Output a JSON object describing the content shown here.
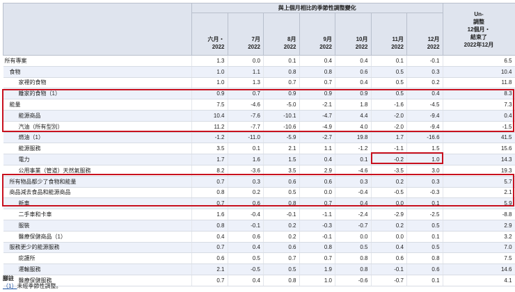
{
  "header": {
    "group_title": "與上個月相比的季節性調整變化",
    "columns": [
      [
        "六月・",
        "2022"
      ],
      [
        "7月",
        "2022"
      ],
      [
        "8月",
        "2022"
      ],
      [
        "9月",
        "2022"
      ],
      [
        "10月",
        "2022"
      ],
      [
        "11月",
        "2022"
      ],
      [
        "12月",
        "2022"
      ]
    ],
    "last_column": [
      "Un-",
      "調整",
      "12個月・",
      "結束了",
      "2022年12月"
    ]
  },
  "rows": [
    {
      "name": "所有專案",
      "indent": 0,
      "values": [
        "1.3",
        "0.0",
        "0.1",
        "0.4",
        "0.4",
        "0.1",
        "-0.1",
        "6.5"
      ]
    },
    {
      "name": "食物",
      "indent": 1,
      "values": [
        "1.0",
        "1.1",
        "0.8",
        "0.8",
        "0.6",
        "0.5",
        "0.3",
        "10.4"
      ]
    },
    {
      "name": "家裡的食物",
      "indent": 2,
      "values": [
        "1.0",
        "1.3",
        "0.7",
        "0.7",
        "0.4",
        "0.5",
        "0.2",
        "11.8"
      ]
    },
    {
      "name": "離家的食物（1）",
      "indent": 2,
      "values": [
        "0.9",
        "0.7",
        "0.9",
        "0.9",
        "0.9",
        "0.5",
        "0.4",
        "8.3"
      ]
    },
    {
      "name": "能量",
      "indent": 1,
      "values": [
        "7.5",
        "-4.6",
        "-5.0",
        "-2.1",
        "1.8",
        "-1.6",
        "-4.5",
        "7.3"
      ]
    },
    {
      "name": "能源商品",
      "indent": 2,
      "values": [
        "10.4",
        "-7.6",
        "-10.1",
        "-4.7",
        "4.4",
        "-2.0",
        "-9.4",
        "0.4"
      ]
    },
    {
      "name": "汽油（所有型別）",
      "indent": 2,
      "values": [
        "11.2",
        "-7.7",
        "-10.6",
        "-4.9",
        "4.0",
        "-2.0",
        "-9.4",
        "-1.5"
      ]
    },
    {
      "name": "燃油（1）",
      "indent": 2,
      "values": [
        "-1.2",
        "-11.0",
        "-5.9",
        "-2.7",
        "19.8",
        "1.7",
        "-16.6",
        "41.5"
      ]
    },
    {
      "name": "能源服務",
      "indent": 2,
      "values": [
        "3.5",
        "0.1",
        "2.1",
        "1.1",
        "-1.2",
        "-1.1",
        "1.5",
        "15.6"
      ]
    },
    {
      "name": "電力",
      "indent": 2,
      "values": [
        "1.7",
        "1.6",
        "1.5",
        "0.4",
        "0.1",
        "-0.2",
        "1.0",
        "14.3"
      ]
    },
    {
      "name": "公用事業（管道）天然氣服務",
      "indent": 2,
      "values": [
        "8.2",
        "-3.6",
        "3.5",
        "2.9",
        "-4.6",
        "-3.5",
        "3.0",
        "19.3"
      ]
    },
    {
      "name": "所有物品都少了食物和能量",
      "indent": 1,
      "values": [
        "0.7",
        "0.3",
        "0.6",
        "0.6",
        "0.3",
        "0.2",
        "0.3",
        "5.7"
      ]
    },
    {
      "name": "商品減去食品和能源商品",
      "indent": 1,
      "values": [
        "0.8",
        "0.2",
        "0.5",
        "0.0",
        "-0.4",
        "-0.5",
        "-0.3",
        "2.1"
      ]
    },
    {
      "name": "新車",
      "indent": 2,
      "values": [
        "0.7",
        "0.6",
        "0.8",
        "0.7",
        "0.4",
        "0.0",
        "0.1",
        "5.9"
      ]
    },
    {
      "name": "二手車和卡車",
      "indent": 2,
      "values": [
        "1.6",
        "-0.4",
        "-0.1",
        "-1.1",
        "-2.4",
        "-2.9",
        "-2.5",
        "-8.8"
      ]
    },
    {
      "name": "服裝",
      "indent": 2,
      "values": [
        "0.8",
        "-0.1",
        "0.2",
        "-0.3",
        "-0.7",
        "0.2",
        "0.5",
        "2.9"
      ]
    },
    {
      "name": "醫療保健商品（1）",
      "indent": 2,
      "values": [
        "0.4",
        "0.6",
        "0.2",
        "-0.1",
        "0.0",
        "0.0",
        "0.1",
        "3.2"
      ]
    },
    {
      "name": "服務更少的能源服務",
      "indent": 1,
      "values": [
        "0.7",
        "0.4",
        "0.6",
        "0.8",
        "0.5",
        "0.4",
        "0.5",
        "7.0"
      ]
    },
    {
      "name": "庇護所",
      "indent": 2,
      "values": [
        "0.6",
        "0.5",
        "0.7",
        "0.7",
        "0.8",
        "0.6",
        "0.8",
        "7.5"
      ]
    },
    {
      "name": "運輸服務",
      "indent": 2,
      "values": [
        "2.1",
        "-0.5",
        "0.5",
        "1.9",
        "0.8",
        "-0.1",
        "0.6",
        "14.6"
      ]
    },
    {
      "name": "醫療保健服務",
      "indent": 2,
      "values": [
        "0.7",
        "0.4",
        "0.8",
        "1.0",
        "-0.6",
        "-0.7",
        "0.1",
        "4.1"
      ]
    }
  ],
  "footnotes": {
    "title": "腳註",
    "note_marker": "（1）",
    "note_text": "未經季節性調整。"
  },
  "highlight_color": "#c8101e"
}
